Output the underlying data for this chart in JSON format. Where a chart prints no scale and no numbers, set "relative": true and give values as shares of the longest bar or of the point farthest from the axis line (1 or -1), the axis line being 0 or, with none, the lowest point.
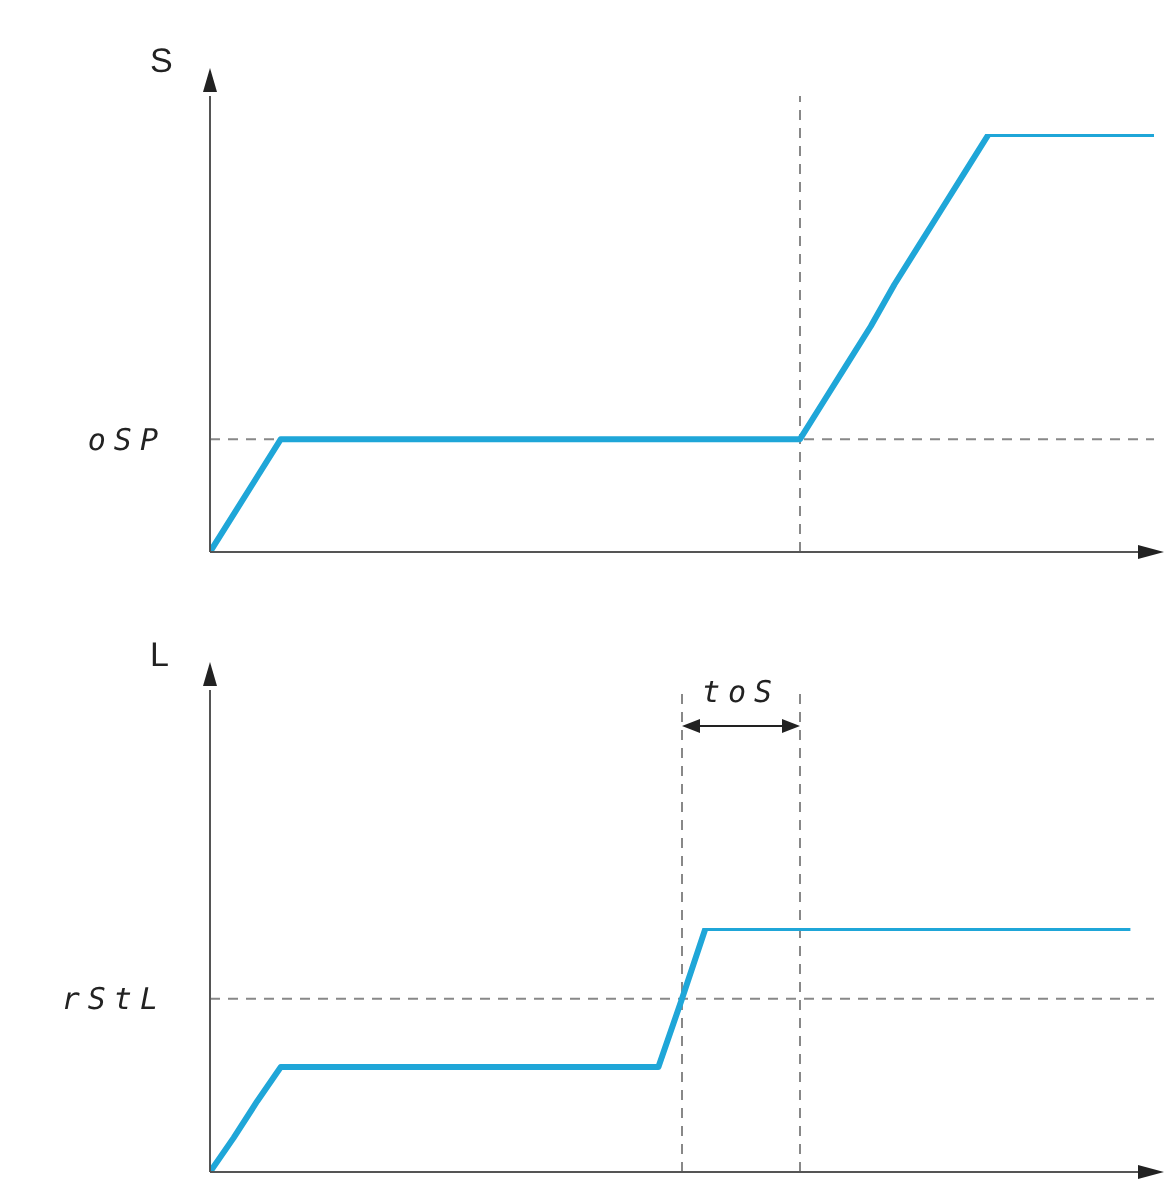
{
  "chart_data": [
    {
      "type": "line",
      "relative": true,
      "ylabel": "S",
      "marker": "none",
      "categories": [
        null,
        null,
        null,
        null,
        null,
        null,
        null,
        null,
        null,
        null,
        null,
        null,
        null,
        null,
        null,
        null,
        null,
        null,
        null,
        null,
        null,
        null,
        null,
        null,
        null,
        null,
        null,
        null,
        null,
        null,
        null,
        null,
        null,
        null,
        null,
        null,
        null,
        null,
        null,
        null,
        null
      ],
      "series": [
        {
          "color": "#1fa6d8",
          "values": [
            0,
            0.09,
            0.18,
            0.27,
            0.27,
            0.27,
            0.27,
            0.27,
            0.27,
            0.27,
            0.27,
            0.27,
            0.27,
            0.27,
            0.27,
            0.27,
            0.27,
            0.27,
            0.27,
            0.27,
            0.27,
            0.27,
            0.27,
            0.27,
            0.27,
            0.27,
            0.36,
            0.45,
            0.54,
            0.64,
            0.73,
            0.82,
            0.91,
            1,
            1,
            1,
            1,
            1,
            1,
            1,
            1
          ]
        }
      ],
      "ref_lines": [
        {
          "axis": "y",
          "value": 0.27,
          "label": "oSP",
          "color": "#888888",
          "line_style": "dashed"
        }
      ]
    },
    {
      "type": "line",
      "relative": true,
      "ylabel": "L",
      "marker": "none",
      "categories": [
        null,
        null,
        null,
        null,
        null,
        null,
        null,
        null,
        null,
        null,
        null,
        null,
        null,
        null,
        null,
        null,
        null,
        null,
        null,
        null,
        null,
        null,
        null,
        null,
        null,
        null,
        null,
        null,
        null,
        null,
        null,
        null,
        null,
        null,
        null,
        null,
        null,
        null,
        null,
        null,
        null
      ],
      "series": [
        {
          "color": "#1fa6d8",
          "values": [
            0,
            0.14,
            0.29,
            0.43,
            0.43,
            0.43,
            0.43,
            0.43,
            0.43,
            0.43,
            0.43,
            0.43,
            0.43,
            0.43,
            0.43,
            0.43,
            0.43,
            0.43,
            0.43,
            0.43,
            0.71,
            1,
            1,
            1,
            1,
            1,
            1,
            1,
            1,
            1,
            1,
            1,
            1,
            1,
            1,
            1,
            1,
            1,
            1,
            1,
            null
          ]
        }
      ],
      "ref_lines": [
        {
          "axis": "y",
          "value": 0.71,
          "label": "rStL",
          "color": "#888888",
          "line_style": "dashed"
        }
      ],
      "annotations": [
        "toS"
      ]
    }
  ]
}
